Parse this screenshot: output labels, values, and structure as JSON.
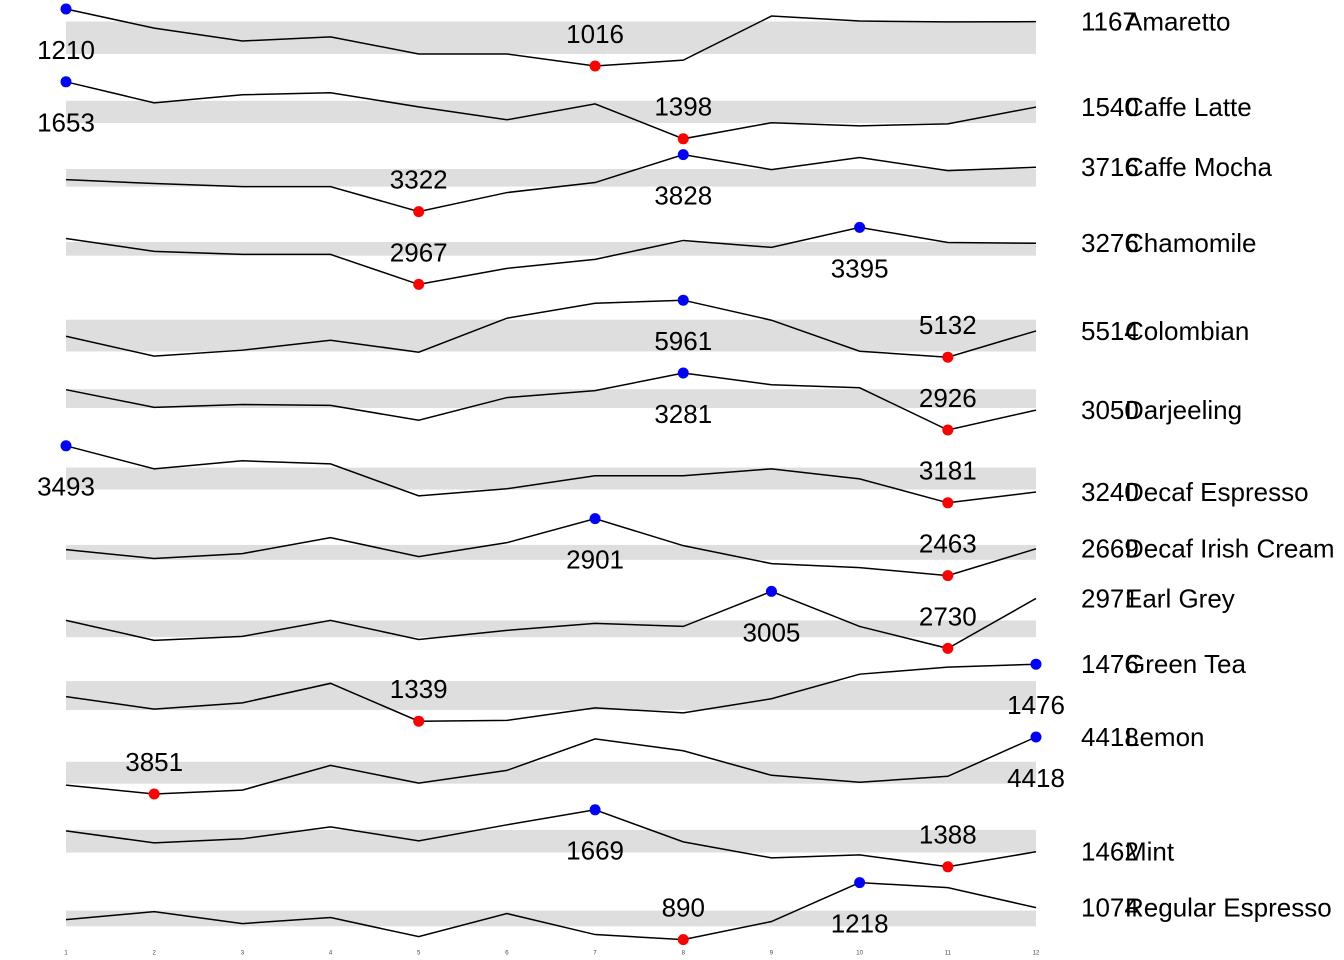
{
  "chart_data": {
    "type": "sparkline",
    "x": [
      1,
      2,
      3,
      4,
      5,
      6,
      7,
      8,
      9,
      10,
      11,
      12
    ],
    "color": "#000000",
    "min_color": "#ff0000",
    "max_color": "#0000ff",
    "band_color": "#dedede",
    "series": [
      {
        "name": "Amaretto",
        "values": [
          1210,
          1145,
          1101,
          1115,
          1057,
          1057,
          1016,
          1036,
          1186,
          1169,
          1166,
          1167
        ]
      },
      {
        "name": "Caffe Latte",
        "values": [
          1653,
          1559,
          1595,
          1604,
          1541,
          1483,
          1554,
          1398,
          1470,
          1456,
          1465,
          1540
        ]
      },
      {
        "name": "Caffe Mocha",
        "values": [
          3606,
          3571,
          3544,
          3544,
          3322,
          3491,
          3580,
          3828,
          3695,
          3802,
          3686,
          3716
        ]
      },
      {
        "name": "Chamomile",
        "values": [
          3312,
          3215,
          3192,
          3192,
          2967,
          3087,
          3155,
          3297,
          3245,
          3395,
          3282,
          3276
        ]
      },
      {
        "name": "Colombian",
        "values": [
          5437,
          5147,
          5234,
          5379,
          5205,
          5699,
          5917,
          5961,
          5670,
          5219,
          5132,
          5514
        ]
      },
      {
        "name": "Darjeeling",
        "values": [
          3177,
          3067,
          3085,
          3079,
          2987,
          3128,
          3171,
          3281,
          3208,
          3189,
          2926,
          3050
        ]
      },
      {
        "name": "Decaf Espresso",
        "values": [
          3493,
          3367,
          3411,
          3394,
          3219,
          3258,
          3329,
          3329,
          3367,
          3312,
          3181,
          3240
        ]
      },
      {
        "name": "Decaf Irish Cream",
        "values": [
          2663,
          2594,
          2632,
          2755,
          2609,
          2716,
          2901,
          2693,
          2555,
          2524,
          2463,
          2669
        ]
      },
      {
        "name": "Earl Grey",
        "values": [
          2865,
          2769,
          2788,
          2865,
          2773,
          2817,
          2851,
          2836,
          3005,
          2836,
          2730,
          2971
        ]
      },
      {
        "name": "Green Tea",
        "values": [
          1398,
          1368,
          1383,
          1430,
          1339,
          1341,
          1371,
          1359,
          1393,
          1452,
          1469,
          1476
        ]
      },
      {
        "name": "Lemon",
        "values": [
          3939,
          3851,
          3890,
          4135,
          3959,
          4086,
          4399,
          4281,
          4037,
          3968,
          4027,
          4418
        ]
      },
      {
        "name": "Mint",
        "values": [
          1565,
          1506,
          1526,
          1585,
          1516,
          1595,
          1669,
          1511,
          1432,
          1447,
          1388,
          1462
        ]
      },
      {
        "name": "Regular Espresso",
        "values": [
          1005,
          1051,
          982,
          1017,
          907,
          1040,
          919,
          890,
          994,
          1218,
          1189,
          1074
        ]
      }
    ]
  }
}
